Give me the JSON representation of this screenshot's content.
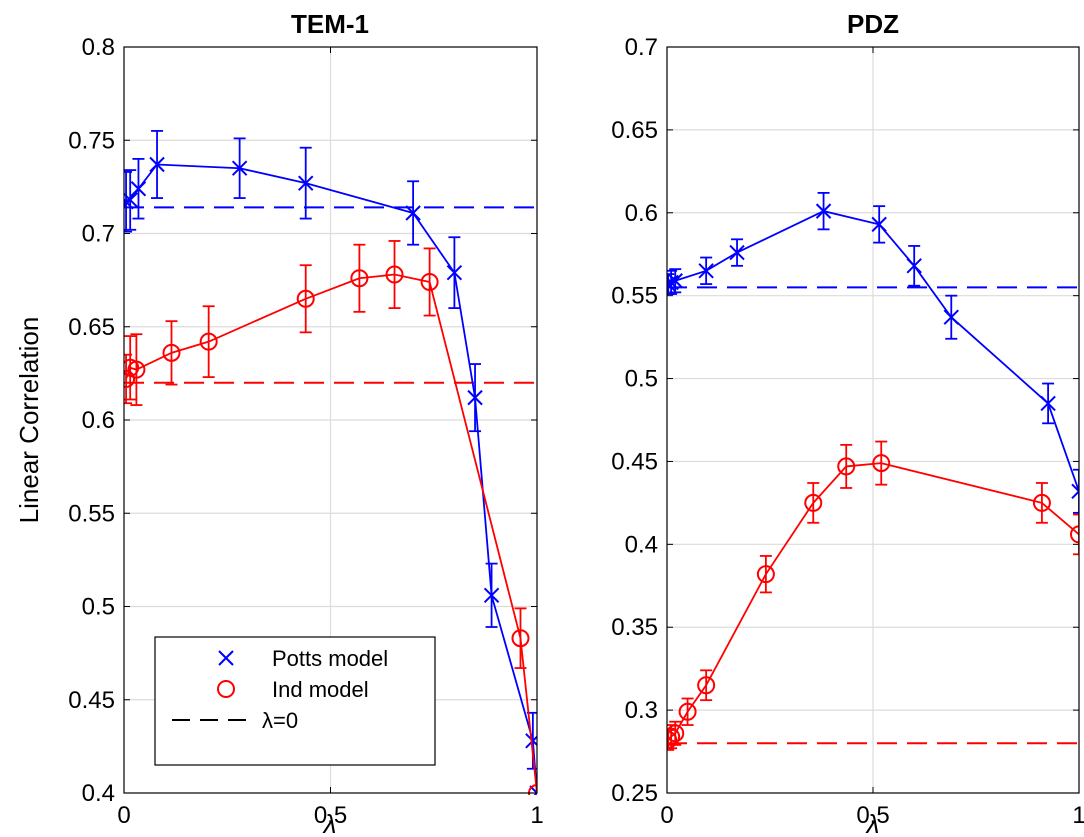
{
  "chart_data": [
    {
      "type": "line",
      "title": "TEM-1",
      "xlabel": "λ",
      "ylabel": "Linear Correlation",
      "xlim": [
        0,
        1
      ],
      "ylim": [
        0.4,
        0.8
      ],
      "xticks": [
        "0",
        "0.5",
        "1"
      ],
      "xtick_values": [
        0,
        0.5,
        1
      ],
      "yticks": [
        "0.4",
        "0.45",
        "0.5",
        "0.55",
        "0.6",
        "0.65",
        "0.7",
        "0.75",
        "0.8"
      ],
      "ytick_values": [
        0.4,
        0.45,
        0.5,
        0.55,
        0.6,
        0.65,
        0.7,
        0.75,
        0.8
      ],
      "grid": true,
      "legend_position": "bottom-left",
      "legend": [
        "Potts model",
        "Ind model",
        "λ=0"
      ],
      "series": [
        {
          "name": "Potts model",
          "color": "#0000ff",
          "marker": "x",
          "x": [
            0.005,
            0.015,
            0.035,
            0.08,
            0.28,
            0.44,
            0.7,
            0.8,
            0.85,
            0.89,
            0.99,
            1.0
          ],
          "y": [
            0.717,
            0.718,
            0.724,
            0.737,
            0.735,
            0.727,
            0.711,
            0.679,
            0.612,
            0.506,
            0.428,
            0.4
          ],
          "err": [
            0.016,
            0.016,
            0.016,
            0.018,
            0.016,
            0.019,
            0.017,
            0.019,
            0.018,
            0.017,
            0.015,
            0.0
          ]
        },
        {
          "name": "Ind model",
          "color": "#ff0000",
          "marker": "o",
          "x": [
            0.005,
            0.015,
            0.03,
            0.115,
            0.205,
            0.44,
            0.57,
            0.655,
            0.74,
            0.96,
            1.0
          ],
          "y": [
            0.622,
            0.628,
            0.627,
            0.636,
            0.642,
            0.665,
            0.676,
            0.678,
            0.674,
            0.483,
            0.4
          ],
          "err": [
            0.013,
            0.017,
            0.019,
            0.017,
            0.019,
            0.018,
            0.018,
            0.018,
            0.018,
            0.016,
            0.0
          ]
        }
      ],
      "baselines": [
        {
          "name": "λ=0",
          "color": "#0000ff",
          "y": 0.714
        },
        {
          "name": "λ=0",
          "color": "#ff0000",
          "y": 0.62
        }
      ]
    },
    {
      "type": "line",
      "title": "PDZ",
      "xlabel": "λ",
      "ylabel": "",
      "xlim": [
        0,
        1
      ],
      "ylim": [
        0.25,
        0.7
      ],
      "xticks": [
        "0",
        "0.5",
        "1"
      ],
      "xtick_values": [
        0,
        0.5,
        1
      ],
      "yticks": [
        "0.25",
        "0.3",
        "0.35",
        "0.4",
        "0.45",
        "0.5",
        "0.55",
        "0.6",
        "0.65",
        "0.7"
      ],
      "ytick_values": [
        0.25,
        0.3,
        0.35,
        0.4,
        0.45,
        0.5,
        0.55,
        0.6,
        0.65,
        0.7
      ],
      "grid": true,
      "series": [
        {
          "name": "Potts model",
          "color": "#0000ff",
          "marker": "x",
          "x": [
            0.003,
            0.01,
            0.02,
            0.095,
            0.17,
            0.38,
            0.515,
            0.6,
            0.69,
            0.925,
            1.0
          ],
          "y": [
            0.557,
            0.558,
            0.559,
            0.565,
            0.576,
            0.601,
            0.593,
            0.568,
            0.537,
            0.485,
            0.432
          ],
          "err": [
            0.006,
            0.007,
            0.007,
            0.008,
            0.008,
            0.011,
            0.011,
            0.012,
            0.013,
            0.012,
            0.013
          ]
        },
        {
          "name": "Ind model",
          "color": "#ff0000",
          "marker": "o",
          "x": [
            0.003,
            0.01,
            0.02,
            0.05,
            0.095,
            0.24,
            0.355,
            0.435,
            0.52,
            0.91,
            1.0
          ],
          "y": [
            0.282,
            0.284,
            0.286,
            0.299,
            0.315,
            0.382,
            0.425,
            0.447,
            0.449,
            0.425,
            0.406
          ],
          "err": [
            0.006,
            0.007,
            0.007,
            0.008,
            0.009,
            0.011,
            0.012,
            0.013,
            0.013,
            0.012,
            0.012
          ]
        }
      ],
      "baselines": [
        {
          "name": "λ=0",
          "color": "#0000ff",
          "y": 0.555
        },
        {
          "name": "λ=0",
          "color": "#ff0000",
          "y": 0.28
        }
      ]
    }
  ]
}
